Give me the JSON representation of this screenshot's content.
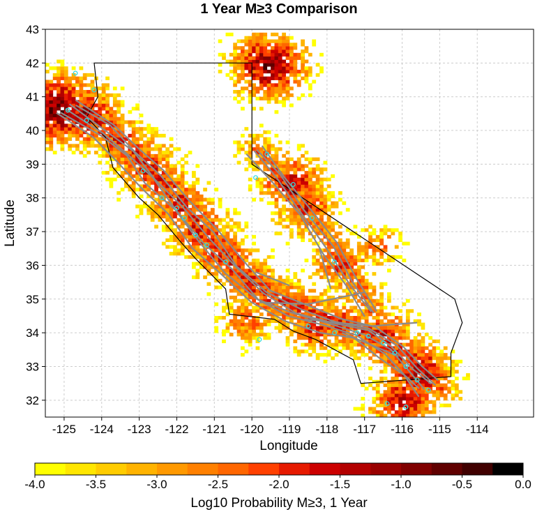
{
  "title": "1 Year M≥3 Comparison",
  "x_axis": {
    "label": "Longitude",
    "range": [
      -125.5,
      -112.5
    ],
    "ticks": [
      -125,
      -124,
      -123,
      -122,
      -121,
      -120,
      -119,
      -118,
      -117,
      -116,
      -115,
      -114
    ]
  },
  "y_axis": {
    "label": "Latitude",
    "range": [
      31.5,
      43
    ],
    "ticks": [
      32,
      33,
      34,
      35,
      36,
      37,
      38,
      39,
      40,
      41,
      42,
      43
    ]
  },
  "colorbar": {
    "label": "Log10 Probability M≥3, 1 Year",
    "min": -4.0,
    "max": 0.0,
    "tick_labels": [
      "-4.0",
      "-3.5",
      "-3.0",
      "-2.5",
      "-2.0",
      "-1.5",
      "-1.0",
      "-0.5",
      "0.0"
    ],
    "colors": [
      "#ffff00",
      "#ffe600",
      "#ffcc00",
      "#ffb300",
      "#ff9900",
      "#ff8000",
      "#ff6600",
      "#ff4000",
      "#e61a00",
      "#cc0000",
      "#b30000",
      "#990000",
      "#800000",
      "#600000",
      "#400000",
      "#000000"
    ]
  },
  "colors": {
    "fault_traces": "#8a8a8a",
    "epicenters": "#33dddd",
    "state_boundary": "#000000",
    "grid": "#cccccc"
  },
  "chart_data": {
    "type": "heatmap",
    "title": "1 Year M≥3 Comparison",
    "xlabel": "Longitude",
    "ylabel": "Latitude",
    "xlim": [
      -125.5,
      -112.5
    ],
    "ylim": [
      31.5,
      43
    ],
    "grid": true,
    "value_label": "Log10 Probability M≥3, 1 Year",
    "value_range": [
      -4.0,
      0.0
    ],
    "cell_size_deg": 0.1,
    "hotspots": [
      {
        "lon": -125.2,
        "lat": 40.6,
        "value": -0.5
      },
      {
        "lon": -124.5,
        "lat": 40.4,
        "value": -1.0
      },
      {
        "lon": -119.6,
        "lat": 41.9,
        "value": -0.7
      },
      {
        "lon": -119.0,
        "lat": 38.4,
        "value": -1.3
      },
      {
        "lon": -118.6,
        "lat": 37.6,
        "value": -1.6
      },
      {
        "lon": -122.8,
        "lat": 38.8,
        "value": -1.5
      },
      {
        "lon": -122.0,
        "lat": 37.8,
        "value": -1.5
      },
      {
        "lon": -121.5,
        "lat": 37.0,
        "value": -1.6
      },
      {
        "lon": -120.9,
        "lat": 36.2,
        "value": -1.8
      },
      {
        "lon": -117.7,
        "lat": 36.0,
        "value": -1.7
      },
      {
        "lon": -118.3,
        "lat": 34.1,
        "value": -1.6
      },
      {
        "lon": -116.5,
        "lat": 33.9,
        "value": -1.5
      },
      {
        "lon": -115.6,
        "lat": 32.8,
        "value": -1.1
      },
      {
        "lon": -116.0,
        "lat": 31.9,
        "value": -1.2
      },
      {
        "lon": -120.2,
        "lat": 34.3,
        "value": -2.0
      },
      {
        "lon": -116.7,
        "lat": 36.5,
        "value": -2.3
      }
    ],
    "epicenters": [
      {
        "lon": -124.9,
        "lat": 40.6
      },
      {
        "lon": -124.4,
        "lat": 40.3
      },
      {
        "lon": -124.2,
        "lat": 41.2
      },
      {
        "lon": -124.7,
        "lat": 41.7
      },
      {
        "lon": -122.9,
        "lat": 38.8
      },
      {
        "lon": -122.4,
        "lat": 38.0
      },
      {
        "lon": -122.0,
        "lat": 37.7
      },
      {
        "lon": -121.8,
        "lat": 37.4
      },
      {
        "lon": -121.5,
        "lat": 36.9
      },
      {
        "lon": -121.2,
        "lat": 36.6
      },
      {
        "lon": -120.7,
        "lat": 36.1
      },
      {
        "lon": -119.9,
        "lat": 38.6
      },
      {
        "lon": -119.6,
        "lat": 39.3
      },
      {
        "lon": -118.9,
        "lat": 38.4
      },
      {
        "lon": -118.4,
        "lat": 37.4
      },
      {
        "lon": -117.8,
        "lat": 36.1
      },
      {
        "lon": -118.5,
        "lat": 34.2
      },
      {
        "lon": -117.8,
        "lat": 34.0
      },
      {
        "lon": -117.2,
        "lat": 34.0
      },
      {
        "lon": -116.9,
        "lat": 33.9
      },
      {
        "lon": -116.5,
        "lat": 33.7
      },
      {
        "lon": -116.2,
        "lat": 33.4
      },
      {
        "lon": -115.9,
        "lat": 33.0
      },
      {
        "lon": -115.6,
        "lat": 32.6
      },
      {
        "lon": -115.3,
        "lat": 32.3
      },
      {
        "lon": -116.4,
        "lat": 31.9
      },
      {
        "lon": -115.9,
        "lat": 31.8
      },
      {
        "lon": -119.8,
        "lat": 33.8
      }
    ]
  }
}
